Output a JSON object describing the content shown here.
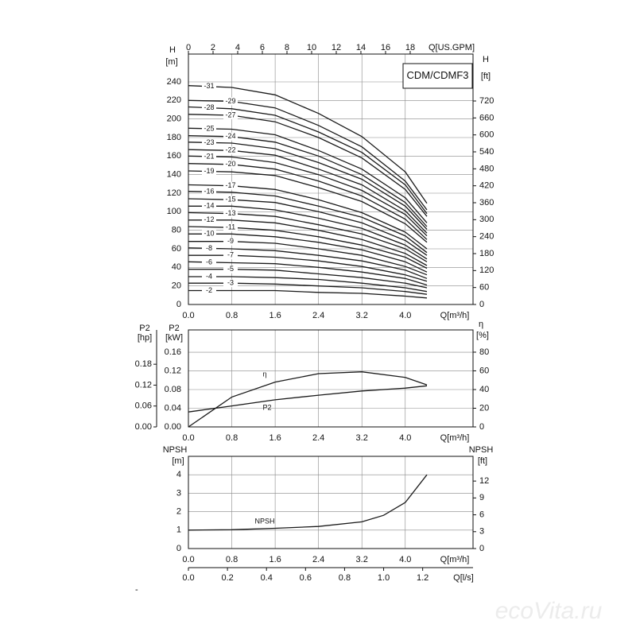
{
  "chart_data": [
    {
      "type": "line",
      "title": "CDM/CDMF3",
      "x": [
        0,
        0.8,
        1.6,
        2.4,
        3.2,
        4.0,
        4.4
      ],
      "xlim": [
        0,
        5.25
      ],
      "xticks": [
        {
          "value": 0,
          "label": "0.0"
        },
        0.8,
        1.6,
        2.4,
        3.2,
        {
          "value": 4,
          "label": "4.0"
        }
      ],
      "xlabel": "Q[m³/h]",
      "x2lim": [
        0,
        23.1
      ],
      "x2ticks": [
        0,
        2,
        4,
        6,
        8,
        10,
        12,
        14,
        16,
        18
      ],
      "x2label": "Q[US.GPM]",
      "ylabel": "H",
      "yunit": "[m]",
      "ylim": [
        0,
        270
      ],
      "yticks": [
        0,
        20,
        40,
        60,
        80,
        100,
        120,
        140,
        160,
        180,
        200,
        220,
        240
      ],
      "y2label": "H",
      "y2unit": "[ft]",
      "y2lim": [
        0,
        886
      ],
      "y2ticks": [
        0,
        60,
        120,
        180,
        240,
        300,
        360,
        420,
        480,
        540,
        600,
        660,
        720
      ],
      "grid": true,
      "color": "#1a1a1a",
      "series": [
        {
          "name": "-31",
          "values": [
            236,
            234,
            226,
            206,
            181,
            143,
            109
          ]
        },
        {
          "name": "-29",
          "values": [
            220,
            219,
            212,
            193,
            170,
            133,
            102
          ]
        },
        {
          "name": "-28",
          "values": [
            213,
            211,
            204,
            186,
            164,
            129,
            98
          ]
        },
        {
          "name": "-27",
          "values": [
            205,
            204,
            197,
            180,
            158,
            124,
            95
          ]
        },
        {
          "name": "-25",
          "values": [
            190,
            189,
            183,
            166,
            146,
            115,
            88
          ]
        },
        {
          "name": "-24",
          "values": [
            182,
            181,
            175,
            160,
            140,
            110,
            84
          ]
        },
        {
          "name": "-23",
          "values": [
            175,
            174,
            168,
            153,
            135,
            106,
            81
          ]
        },
        {
          "name": "-22",
          "values": [
            167,
            166,
            161,
            146,
            129,
            101,
            77
          ]
        },
        {
          "name": "-21",
          "values": [
            160,
            159,
            153,
            140,
            123,
            97,
            74
          ]
        },
        {
          "name": "-20",
          "values": [
            152,
            151,
            146,
            133,
            117,
            92,
            70
          ]
        },
        {
          "name": "-19",
          "values": [
            144,
            143,
            139,
            126,
            111,
            87,
            67
          ]
        },
        {
          "name": "-17",
          "values": [
            129,
            128,
            124,
            113,
            99,
            78,
            60
          ]
        },
        {
          "name": "-16",
          "values": [
            122,
            121,
            117,
            106,
            94,
            74,
            56
          ]
        },
        {
          "name": "-15",
          "values": [
            114,
            113,
            110,
            100,
            88,
            69,
            53
          ]
        },
        {
          "name": "-14",
          "values": [
            106,
            106,
            102,
            93,
            82,
            64,
            49
          ]
        },
        {
          "name": "-13",
          "values": [
            99,
            98,
            95,
            86,
            76,
            60,
            46
          ]
        },
        {
          "name": "-12",
          "values": [
            91,
            91,
            88,
            80,
            70,
            55,
            42
          ]
        },
        {
          "name": "-11",
          "values": [
            84,
            83,
            80,
            73,
            64,
            51,
            39
          ]
        },
        {
          "name": "-10",
          "values": [
            76,
            76,
            73,
            67,
            59,
            46,
            35
          ]
        },
        {
          "name": "-9",
          "values": [
            68,
            68,
            66,
            60,
            53,
            41,
            32
          ]
        },
        {
          "name": "-8",
          "values": [
            61,
            60,
            58,
            53,
            47,
            37,
            28
          ]
        },
        {
          "name": "-7",
          "values": [
            53,
            53,
            51,
            47,
            41,
            32,
            25
          ]
        },
        {
          "name": "-6",
          "values": [
            46,
            45,
            44,
            40,
            35,
            28,
            21
          ]
        },
        {
          "name": "-5",
          "values": [
            38,
            38,
            37,
            33,
            29,
            23,
            18
          ]
        },
        {
          "name": "-4",
          "values": [
            30,
            30,
            29,
            27,
            23,
            18,
            14
          ]
        },
        {
          "name": "-3",
          "values": [
            23,
            23,
            22,
            20,
            18,
            14,
            11
          ]
        },
        {
          "name": "-2",
          "values": [
            15,
            15,
            15,
            13,
            12,
            9,
            7
          ]
        }
      ]
    },
    {
      "type": "line",
      "x": [
        0,
        0.8,
        1.6,
        2.4,
        3.2,
        4.0,
        4.4
      ],
      "xlim": [
        0,
        5.25
      ],
      "xticks": [
        {
          "value": 0,
          "label": "0.0"
        },
        0.8,
        1.6,
        2.4,
        3.2,
        {
          "value": 4,
          "label": "4.0"
        }
      ],
      "xlabel": "Q[m³/h]",
      "ylabel": "P2",
      "yunit": "[kW]",
      "ylim": [
        0,
        0.2077
      ],
      "yticks": [
        {
          "value": 0,
          "label": "0.00"
        },
        0.04,
        0.08,
        0.12,
        0.16
      ],
      "y3label": "P2",
      "y3unit": "[hp]",
      "y3lim": [
        0,
        0.2785
      ],
      "y3ticks": [
        {
          "value": 0,
          "label": "0.00"
        },
        0.06,
        0.12,
        0.18
      ],
      "y2label": "η",
      "y2unit": "[%]",
      "y2lim": [
        0,
        103.8
      ],
      "y2ticks": [
        0,
        20,
        40,
        60,
        80
      ],
      "grid": true,
      "color": "#1a1a1a",
      "series": [
        {
          "name": "η",
          "axis": "y2",
          "values": [
            0,
            32,
            48,
            57,
            59,
            53,
            45
          ]
        },
        {
          "name": "P2",
          "values": [
            0.032,
            0.045,
            0.058,
            0.068,
            0.077,
            0.083,
            0.088
          ]
        }
      ]
    },
    {
      "type": "line",
      "x": [
        0,
        0.8,
        1.6,
        2.4,
        3.2,
        3.6,
        4.0,
        4.4
      ],
      "xlim": [
        0,
        5.25
      ],
      "xticks": [
        {
          "value": 0,
          "label": "0.0"
        },
        0.8,
        1.6,
        2.4,
        3.2,
        {
          "value": 4,
          "label": "4.0"
        }
      ],
      "xlabel": "Q[m³/h]",
      "x2lim": [
        0,
        1.458
      ],
      "x2ticks": [
        {
          "value": 0,
          "label": "0.0"
        },
        0.2,
        0.4,
        0.6,
        0.8,
        {
          "value": 1,
          "label": "1.0"
        },
        1.2
      ],
      "x2label": "Q[l/s]",
      "ylabel": "NPSH",
      "yunit": "[m]",
      "ylim": [
        0,
        5
      ],
      "yticks": [
        0,
        1,
        2,
        3,
        4
      ],
      "y2label": "NPSH",
      "y2unit": "[ft]",
      "y2lim": [
        0,
        16.4
      ],
      "y2ticks": [
        0,
        3,
        6,
        9,
        12
      ],
      "grid": true,
      "color": "#1a1a1a",
      "series": [
        {
          "name": "NPSH",
          "values": [
            1.0,
            1.02,
            1.1,
            1.2,
            1.45,
            1.8,
            2.5,
            4.0
          ]
        }
      ]
    }
  ],
  "footnote": "-",
  "watermark": "ecoVita.ru"
}
